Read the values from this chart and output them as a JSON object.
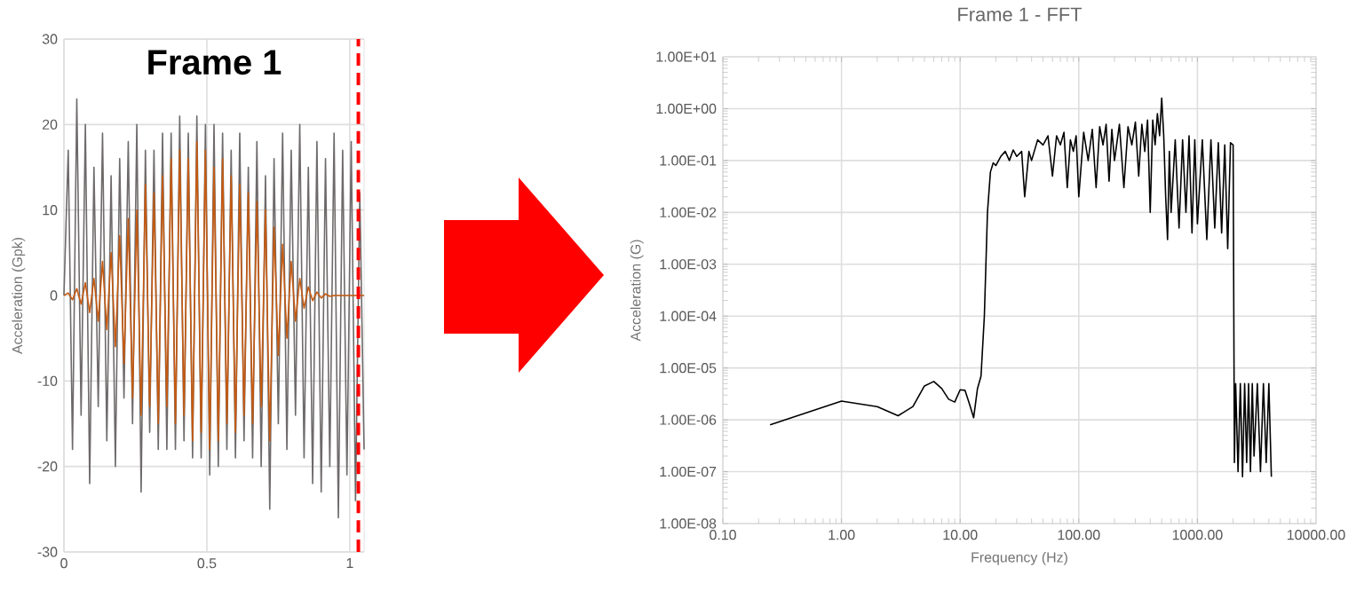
{
  "chart_data": [
    {
      "type": "line",
      "title": "Frame 1",
      "ylabel": "Acceleration (Gpk)",
      "xlim": [
        0,
        1.05
      ],
      "ylim": [
        -30,
        30
      ],
      "xticks": [
        0,
        0.5,
        1
      ],
      "yticks": [
        -30,
        -20,
        -10,
        0,
        10,
        20,
        30
      ],
      "grid": true,
      "marker": "none",
      "line_style": "solid",
      "ref_lines": [
        {
          "axis": "x",
          "value": 1.03,
          "color": "#ff0000",
          "line_style": "dashed"
        }
      ],
      "series": [
        {
          "color": "#6e6a6a",
          "x": [
            0,
            0.015,
            0.03,
            0.045,
            0.06,
            0.075,
            0.09,
            0.105,
            0.12,
            0.135,
            0.15,
            0.165,
            0.18,
            0.195,
            0.21,
            0.225,
            0.24,
            0.255,
            0.27,
            0.285,
            0.3,
            0.315,
            0.33,
            0.345,
            0.36,
            0.375,
            0.39,
            0.405,
            0.42,
            0.435,
            0.45,
            0.465,
            0.48,
            0.495,
            0.51,
            0.525,
            0.54,
            0.555,
            0.57,
            0.585,
            0.6,
            0.615,
            0.63,
            0.645,
            0.66,
            0.675,
            0.69,
            0.705,
            0.72,
            0.735,
            0.75,
            0.765,
            0.78,
            0.795,
            0.81,
            0.825,
            0.84,
            0.855,
            0.87,
            0.885,
            0.9,
            0.915,
            0.93,
            0.945,
            0.96,
            0.975,
            0.99,
            1.005,
            1.02,
            1.035,
            1.05
          ],
          "values": [
            0,
            17,
            -18,
            23,
            -14,
            20,
            -22,
            15,
            -13,
            19,
            -17,
            14,
            -20,
            16,
            -12,
            18,
            -15,
            20,
            -23,
            17,
            -16,
            17,
            -18,
            19,
            -18,
            19,
            -18,
            21,
            -17,
            19,
            -19,
            21,
            -19,
            20,
            -21,
            20,
            -20,
            19,
            -18,
            17,
            -19,
            19,
            -17,
            15,
            -19,
            18,
            -20,
            14,
            -25,
            16,
            -15,
            19,
            -18,
            17,
            -14,
            20,
            -19,
            15,
            -22,
            18,
            -23,
            16,
            -20,
            19,
            -26,
            17,
            -21,
            18,
            -24,
            12,
            -18
          ]
        },
        {
          "color": "#c55a11",
          "x": [
            0,
            0.015,
            0.03,
            0.045,
            0.06,
            0.075,
            0.09,
            0.105,
            0.12,
            0.135,
            0.15,
            0.165,
            0.18,
            0.195,
            0.21,
            0.225,
            0.24,
            0.255,
            0.27,
            0.285,
            0.3,
            0.315,
            0.33,
            0.345,
            0.36,
            0.375,
            0.39,
            0.405,
            0.42,
            0.435,
            0.45,
            0.465,
            0.48,
            0.495,
            0.51,
            0.525,
            0.54,
            0.555,
            0.57,
            0.585,
            0.6,
            0.615,
            0.63,
            0.645,
            0.66,
            0.675,
            0.69,
            0.705,
            0.72,
            0.735,
            0.75,
            0.765,
            0.78,
            0.795,
            0.81,
            0.825,
            0.84,
            0.855,
            0.87,
            0.885,
            0.9,
            0.915,
            0.93,
            0.945,
            0.96,
            0.975,
            0.99,
            1.005,
            1.02,
            1.035,
            1.05
          ],
          "values": [
            0,
            0.3,
            -0.5,
            0.8,
            -1,
            1.5,
            -2,
            2,
            -3,
            4,
            -4,
            5,
            -6,
            7,
            -8,
            9,
            -12,
            10,
            -14,
            13,
            -13,
            12,
            -15,
            14,
            -13,
            16,
            -15,
            17,
            -14,
            16,
            -17,
            18,
            -16,
            17,
            -18,
            15,
            -17,
            16,
            -15,
            14,
            -16,
            13,
            -14,
            12,
            -15,
            11,
            -13,
            10,
            -17,
            8,
            -7,
            6,
            -5,
            4,
            -3,
            2,
            -1.5,
            1,
            -0.6,
            0.4,
            -0.3,
            0.2,
            -0.1,
            0,
            0,
            0,
            0,
            0,
            0,
            0,
            0
          ]
        }
      ]
    },
    {
      "type": "line",
      "title": "Frame 1 - FFT",
      "xlabel": "Frequency (Hz)",
      "ylabel": "Acceleration (G)",
      "log": "xy",
      "xlim": [
        0.1,
        10000
      ],
      "ylim": [
        1e-08,
        10
      ],
      "xticks": [
        {
          "value": 0.1,
          "label": "0.10"
        },
        {
          "value": 1,
          "label": "1.00"
        },
        {
          "value": 10,
          "label": "10.00"
        },
        {
          "value": 100,
          "label": "100.00"
        },
        {
          "value": 1000,
          "label": "1000.00"
        },
        {
          "value": 10000,
          "label": "10000.00"
        }
      ],
      "yticks": [
        {
          "value": 1e-08,
          "label": "1.00E-08"
        },
        {
          "value": 1e-07,
          "label": "1.00E-07"
        },
        {
          "value": 1e-06,
          "label": "1.00E-06"
        },
        {
          "value": 1e-05,
          "label": "1.00E-05"
        },
        {
          "value": 0.0001,
          "label": "1.00E-04"
        },
        {
          "value": 0.001,
          "label": "1.00E-03"
        },
        {
          "value": 0.01,
          "label": "1.00E-02"
        },
        {
          "value": 0.1,
          "label": "1.00E-01"
        },
        {
          "value": 1,
          "label": "1.00E+00"
        },
        {
          "value": 10,
          "label": "1.00E+01"
        }
      ],
      "grid": true,
      "marker": "none",
      "line_style": "solid",
      "series": [
        {
          "color": "#000000",
          "x": [
            0.25,
            1,
            2,
            3,
            4,
            5,
            6,
            7,
            8,
            9,
            10,
            11,
            12,
            13,
            14,
            15,
            16,
            17,
            18,
            19,
            20,
            22,
            24,
            26,
            28,
            30,
            33,
            35,
            38,
            40,
            45,
            50,
            55,
            60,
            65,
            70,
            75,
            80,
            85,
            90,
            95,
            100,
            110,
            120,
            130,
            140,
            150,
            160,
            170,
            180,
            190,
            200,
            220,
            240,
            260,
            280,
            300,
            320,
            340,
            360,
            380,
            400,
            420,
            440,
            460,
            480,
            500,
            520,
            540,
            560,
            580,
            600,
            650,
            700,
            750,
            800,
            850,
            900,
            950,
            1000,
            1100,
            1200,
            1300,
            1400,
            1500,
            1600,
            1700,
            1800,
            1900,
            2000,
            2050,
            2100,
            2200,
            2300,
            2400,
            2500,
            2600,
            2700,
            2800,
            2900,
            3000,
            3200,
            3400,
            3600,
            3800,
            4000,
            4200
          ],
          "values": [
            8e-07,
            2.3e-06,
            1.8e-06,
            1.2e-06,
            1.8e-06,
            4.5e-06,
            5.5e-06,
            4e-06,
            2.5e-06,
            2.2e-06,
            3.8e-06,
            3.7e-06,
            2e-06,
            1.1e-06,
            4e-06,
            7e-06,
            0.0001,
            0.01,
            0.06,
            0.09,
            0.08,
            0.12,
            0.15,
            0.1,
            0.16,
            0.12,
            0.15,
            0.02,
            0.15,
            0.1,
            0.25,
            0.2,
            0.3,
            0.05,
            0.3,
            0.2,
            0.35,
            0.03,
            0.25,
            0.15,
            0.3,
            0.02,
            0.35,
            0.1,
            0.4,
            0.03,
            0.45,
            0.2,
            0.5,
            0.04,
            0.4,
            0.1,
            0.5,
            0.03,
            0.45,
            0.2,
            0.55,
            0.05,
            0.5,
            0.15,
            0.6,
            0.01,
            0.6,
            0.2,
            0.8,
            0.3,
            1.6,
            0.3,
            0.02,
            0.003,
            0.15,
            0.01,
            0.25,
            0.005,
            0.25,
            0.01,
            0.3,
            0.004,
            0.25,
            0.006,
            0.25,
            0.003,
            0.25,
            0.005,
            0.22,
            0.004,
            0.2,
            0.002,
            0.22,
            0.2,
            1.5e-07,
            5e-06,
            1e-07,
            5e-06,
            8e-08,
            5e-06,
            1.5e-07,
            5e-06,
            1e-07,
            5e-06,
            2e-07,
            5e-06,
            1e-07,
            5e-06,
            1.5e-07,
            5e-06,
            8e-08
          ]
        }
      ]
    }
  ]
}
